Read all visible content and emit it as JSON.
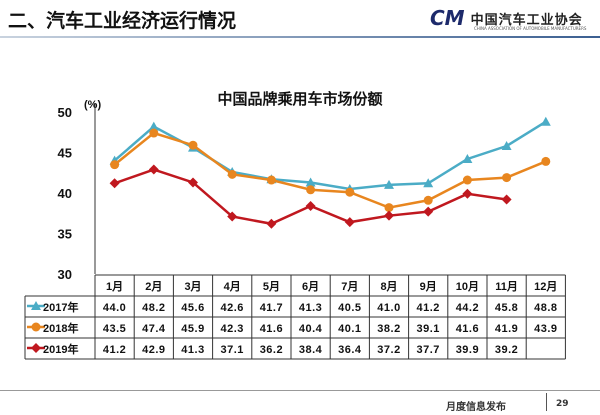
{
  "header": {
    "title": "二、汽车工业经济运行情况",
    "logo_cn": "中国汽车工业协会",
    "logo_en": "CHINA ASSOCIATION OF AUTOMOBILE MANUFACTURERS",
    "logo_mark": "CM"
  },
  "footer": {
    "label": "月度信息发布",
    "page": "29"
  },
  "chart_data": {
    "type": "line",
    "title": "中国品牌乘用车市场份额",
    "ylabel": "(%)",
    "ylim": [
      30,
      50
    ],
    "yticks": [
      30,
      35,
      40,
      45,
      50
    ],
    "categories": [
      "1月",
      "2月",
      "3月",
      "4月",
      "5月",
      "6月",
      "7月",
      "8月",
      "9月",
      "10月",
      "11月",
      "12月"
    ],
    "series": [
      {
        "name": "2017年",
        "color": "#4bacc6",
        "marker": "triangle",
        "values": [
          44.0,
          48.2,
          45.6,
          42.6,
          41.7,
          41.3,
          40.5,
          41.0,
          41.2,
          44.2,
          45.8,
          48.8
        ],
        "labels": [
          "44.0",
          "48.2",
          "45.6",
          "42.6",
          "41.7",
          "41.3",
          "40.5",
          "41.0",
          "41.2",
          "44.2",
          "45.8",
          "48.8"
        ]
      },
      {
        "name": "2018年",
        "color": "#e8861f",
        "marker": "circle",
        "values": [
          43.5,
          47.4,
          45.9,
          42.3,
          41.6,
          40.4,
          40.1,
          38.2,
          39.1,
          41.6,
          41.9,
          43.9
        ],
        "labels": [
          "43.5",
          "47.4",
          "45.9",
          "42.3",
          "41.6",
          "40.4",
          "40.1",
          "38.2",
          "39.1",
          "41.6",
          "41.9",
          "43.9"
        ]
      },
      {
        "name": "2019年",
        "color": "#c0181f",
        "marker": "diamond",
        "values": [
          41.2,
          42.9,
          41.3,
          37.1,
          36.2,
          38.4,
          36.4,
          37.2,
          37.7,
          39.9,
          39.2,
          null
        ],
        "labels": [
          "41.2",
          "42.9",
          "41.3",
          "37.1",
          "36.2",
          "38.4",
          "36.4",
          "37.2",
          "37.7",
          "39.9",
          "39.2",
          ""
        ]
      }
    ]
  }
}
